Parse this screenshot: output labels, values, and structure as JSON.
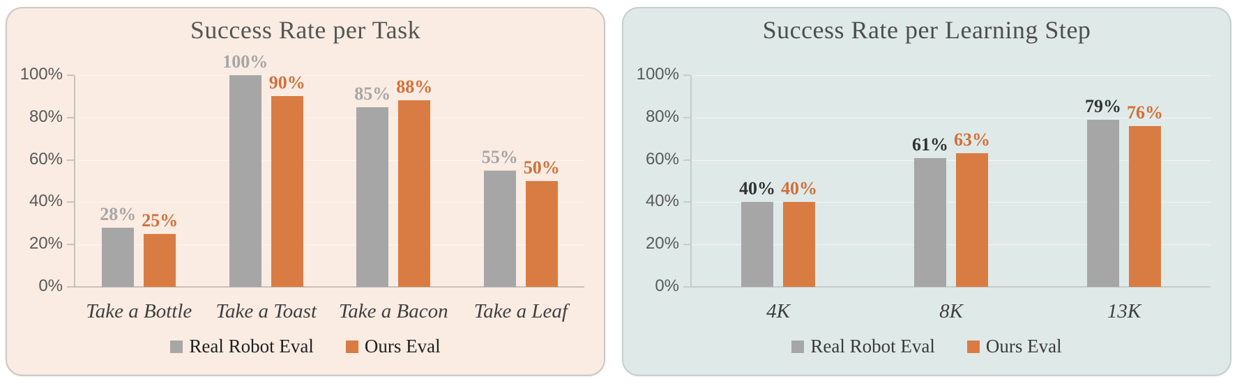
{
  "chart_data": [
    {
      "type": "bar",
      "title": "Success Rate per Task",
      "categories": [
        "Take a Bottle",
        "Take a Toast",
        "Take a Bacon",
        "Take a Leaf"
      ],
      "series": [
        {
          "name": "Real Robot Eval",
          "values": [
            28,
            100,
            85,
            55
          ],
          "color": "#A6A6A6",
          "label_color": "#A6A6A6"
        },
        {
          "name": "Ours Eval",
          "values": [
            25,
            90,
            88,
            50
          ],
          "color": "#D97C43",
          "label_color": "#D0703A"
        }
      ],
      "xlabel": "",
      "ylabel": "",
      "ylim": [
        0,
        100
      ],
      "yticks": [
        0,
        20,
        40,
        60,
        80,
        100
      ],
      "ytick_labels": [
        "0%",
        "20%",
        "40%",
        "60%",
        "80%",
        "100%"
      ],
      "grid": "faint-white-horizontal",
      "legend_position": "bottom",
      "panel_bg": "#FAECE2",
      "panel_border": "#CEC8C3",
      "title_color": "#555555",
      "axis_color": "#C8C1BB",
      "tick_label_color": "#595959",
      "category_color": "#3F3F3F",
      "legend_text_color": "#1F1F1F"
    },
    {
      "type": "bar",
      "title": "Success Rate per Learning Step",
      "categories": [
        "4K",
        "8K",
        "13K"
      ],
      "series": [
        {
          "name": "Real Robot Eval",
          "values": [
            40,
            61,
            79
          ],
          "color": "#A6A6A6",
          "label_color": "#323232"
        },
        {
          "name": "Ours Eval",
          "values": [
            40,
            63,
            76
          ],
          "color": "#D97C43",
          "label_color": "#D0703A"
        }
      ],
      "xlabel": "",
      "ylabel": "",
      "ylim": [
        0,
        100
      ],
      "yticks": [
        0,
        20,
        40,
        60,
        80,
        100
      ],
      "ytick_labels": [
        "0%",
        "20%",
        "40%",
        "60%",
        "80%",
        "100%"
      ],
      "grid": "faint-white-horizontal",
      "legend_position": "bottom",
      "panel_bg": "#DFEAE8",
      "panel_border": "#C5D0CE",
      "title_color": "#4E4E4E",
      "axis_color": "#C5CCCA",
      "tick_label_color": "#595959",
      "category_color": "#3F3F3F",
      "legend_text_color": "#3A3A3A"
    }
  ]
}
